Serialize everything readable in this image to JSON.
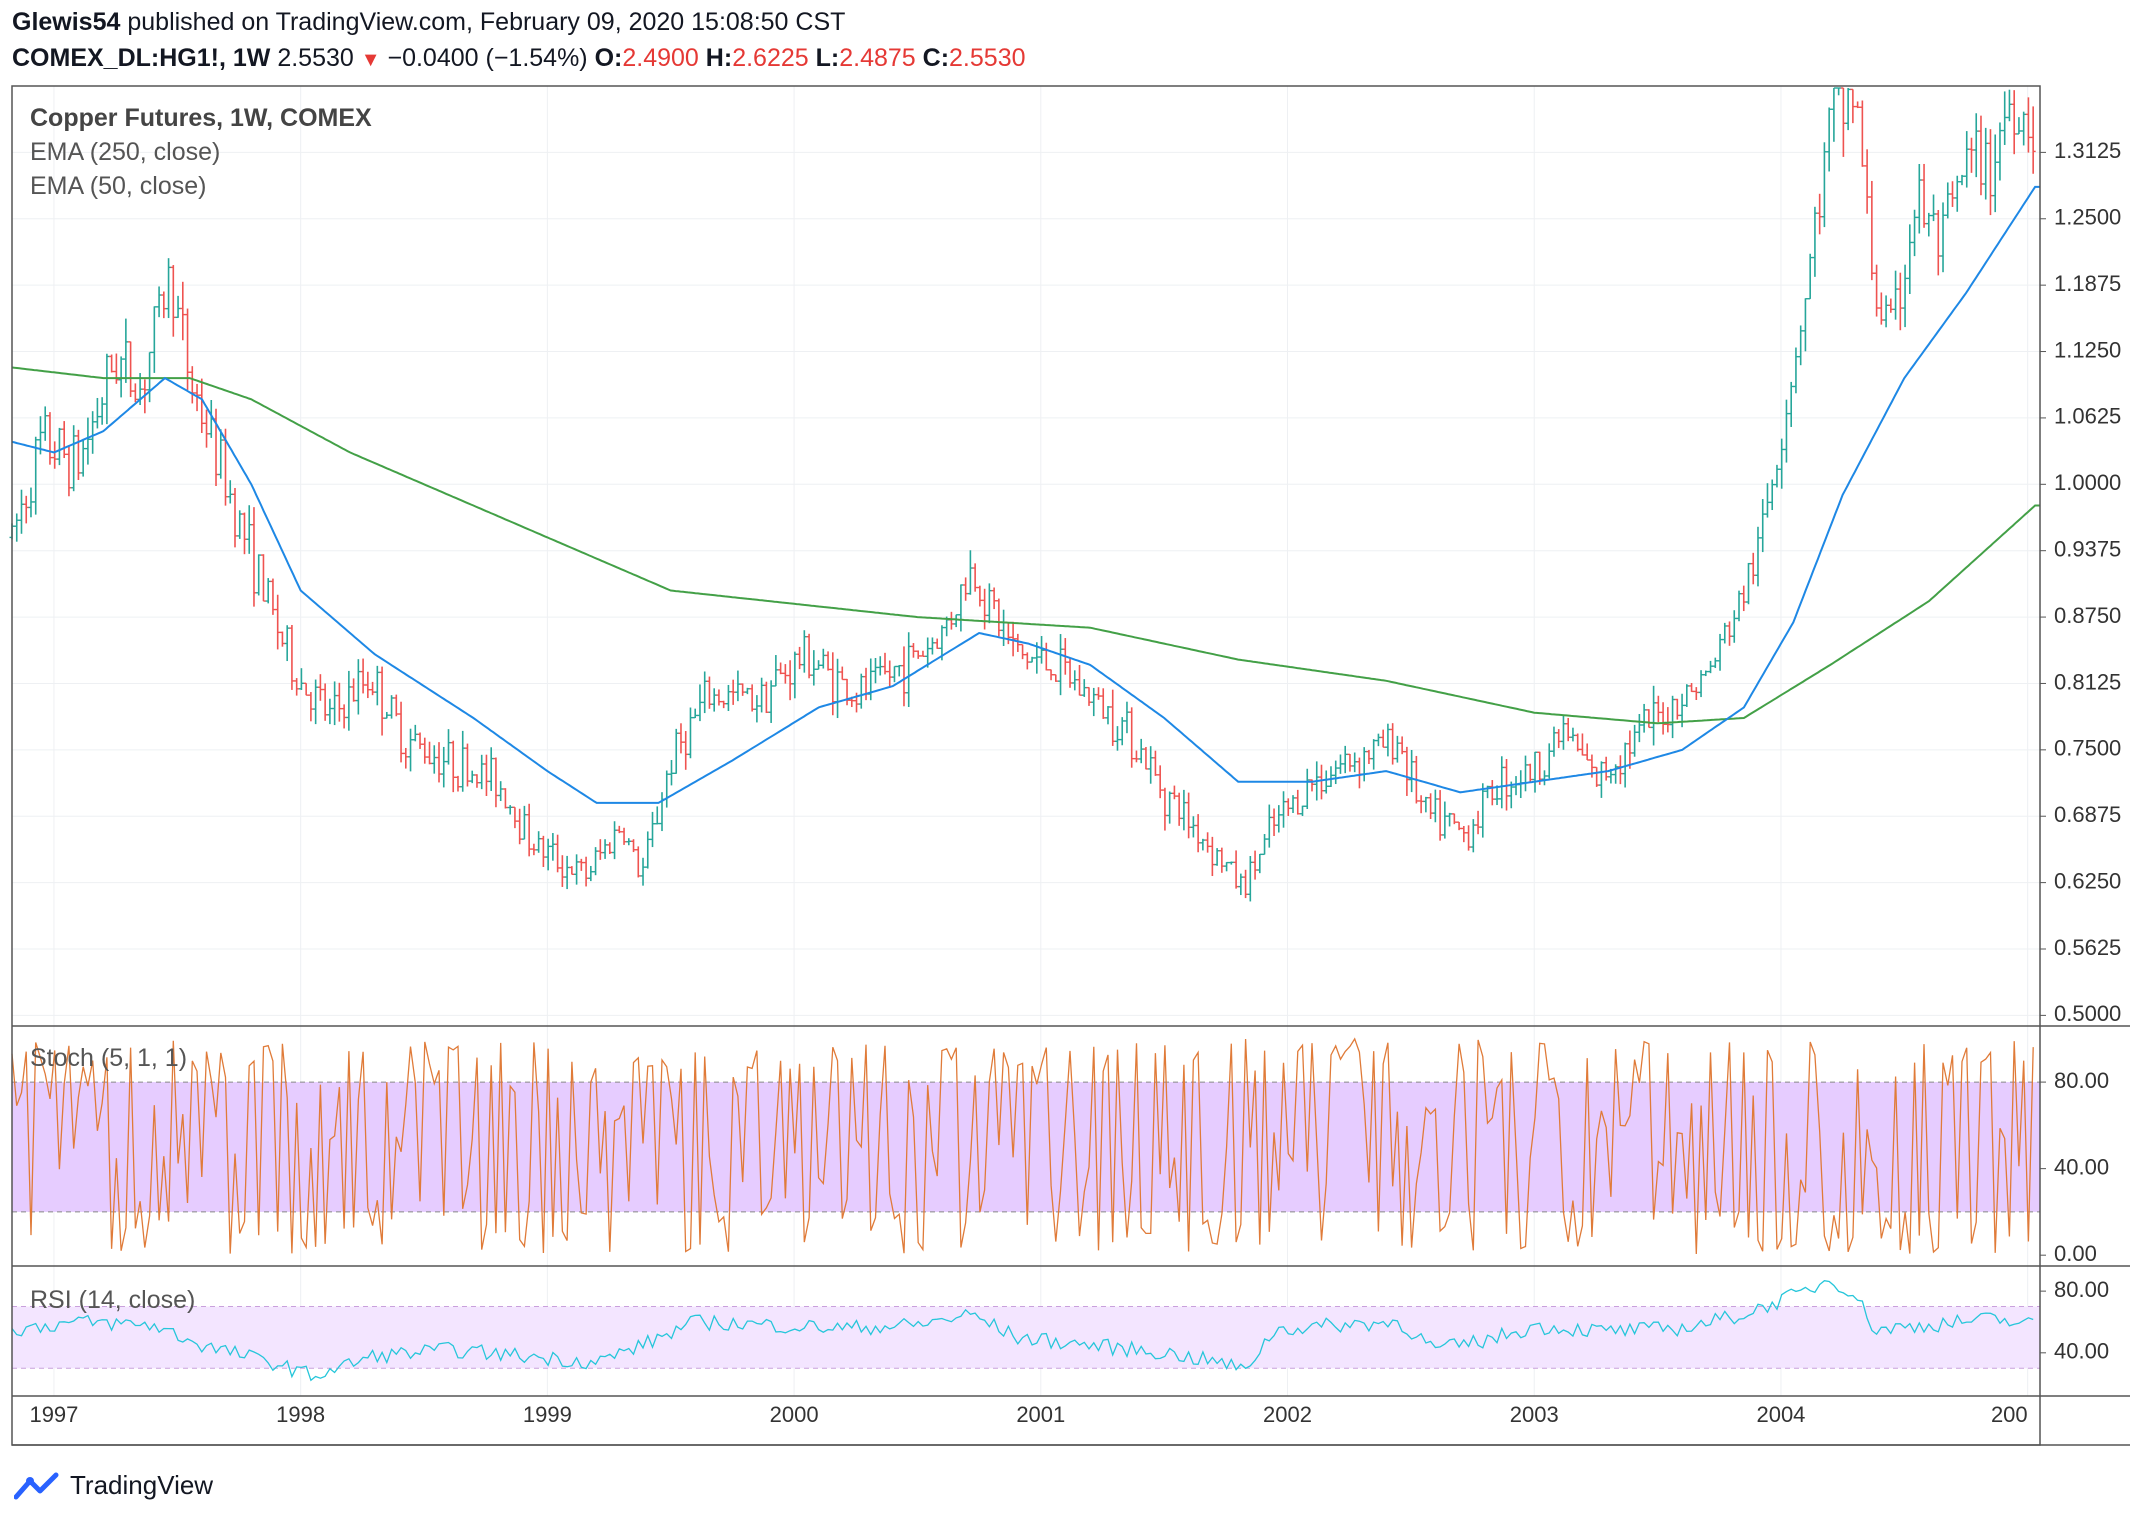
{
  "header": {
    "author": "Glewis54",
    "published_text": "published on TradingView.com, February 09, 2020 15:08:50 CST",
    "symbol": "COMEX_DL:HG1!, 1W",
    "last": "2.5530",
    "change": "−0.0400 (−1.54%)",
    "open_label": "O:",
    "open": "2.4900",
    "high_label": "H:",
    "high": "2.6225",
    "low_label": "L:",
    "low": "2.4875",
    "close_label": "C:",
    "close": "2.5530"
  },
  "legend": {
    "title": "Copper Futures, 1W, COMEX",
    "ema250": "EMA (250, close)",
    "ema50": "EMA (50, close)",
    "stoch": "Stoch (5, 1, 1)",
    "rsi": "RSI (14, close)"
  },
  "footer": {
    "brand": "TradingView"
  },
  "colors": {
    "up": "#26a69a",
    "down": "#ef5350",
    "ema50": "#1e88e5",
    "ema250": "#43a047",
    "stoch": "#e07b39",
    "stoch_band": "#e6ccff",
    "rsi": "#26c6da",
    "rsi_band": "#f3e5ff",
    "grid": "#eef0f3",
    "border": "#555555"
  },
  "chart_data": [
    {
      "type": "candlestick",
      "title": "Copper Futures, 1W, COMEX",
      "x_ticks": [
        "1997",
        "1998",
        "1999",
        "2000",
        "2001",
        "2002",
        "2003",
        "2004",
        "200"
      ],
      "y_ticks": [
        "0.5000",
        "0.5625",
        "0.6250",
        "0.6875",
        "0.7500",
        "0.8125",
        "0.8750",
        "0.9375",
        "1.0000",
        "1.0625",
        "1.1250",
        "1.1875",
        "1.2500",
        "1.3125"
      ],
      "ylim": [
        0.49,
        1.375
      ],
      "xlim": [
        1996.83,
        2005.05
      ],
      "price_anchors": [
        [
          1996.83,
          0.95
        ],
        [
          1996.95,
          1.04
        ],
        [
          1997.1,
          1.02
        ],
        [
          1997.25,
          1.12
        ],
        [
          1997.35,
          1.09
        ],
        [
          1997.47,
          1.2
        ],
        [
          1997.55,
          1.1
        ],
        [
          1997.7,
          1.0
        ],
        [
          1997.85,
          0.9
        ],
        [
          1997.98,
          0.82
        ],
        [
          1998.12,
          0.78
        ],
        [
          1998.28,
          0.82
        ],
        [
          1998.42,
          0.76
        ],
        [
          1998.6,
          0.74
        ],
        [
          1998.8,
          0.72
        ],
        [
          1998.95,
          0.66
        ],
        [
          1999.15,
          0.63
        ],
        [
          1999.3,
          0.68
        ],
        [
          1999.38,
          0.63
        ],
        [
          1999.5,
          0.74
        ],
        [
          1999.65,
          0.8
        ],
        [
          1999.85,
          0.8
        ],
        [
          2000.05,
          0.84
        ],
        [
          2000.25,
          0.8
        ],
        [
          2000.45,
          0.83
        ],
        [
          2000.6,
          0.86
        ],
        [
          2000.72,
          0.92
        ],
        [
          2000.9,
          0.84
        ],
        [
          2001.05,
          0.83
        ],
        [
          2001.2,
          0.8
        ],
        [
          2001.35,
          0.77
        ],
        [
          2001.5,
          0.71
        ],
        [
          2001.65,
          0.67
        ],
        [
          2001.82,
          0.62
        ],
        [
          2001.95,
          0.68
        ],
        [
          2002.1,
          0.72
        ],
        [
          2002.25,
          0.74
        ],
        [
          2002.45,
          0.76
        ],
        [
          2002.55,
          0.69
        ],
        [
          2002.72,
          0.67
        ],
        [
          2002.85,
          0.72
        ],
        [
          2003.0,
          0.73
        ],
        [
          2003.12,
          0.77
        ],
        [
          2003.25,
          0.72
        ],
        [
          2003.4,
          0.76
        ],
        [
          2003.55,
          0.79
        ],
        [
          2003.7,
          0.82
        ],
        [
          2003.8,
          0.87
        ],
        [
          2003.9,
          0.93
        ],
        [
          2004.0,
          1.05
        ],
        [
          2004.1,
          1.18
        ],
        [
          2004.2,
          1.34
        ],
        [
          2004.3,
          1.37
        ],
        [
          2004.38,
          1.18
        ],
        [
          2004.45,
          1.14
        ],
        [
          2004.55,
          1.27
        ],
        [
          2004.65,
          1.22
        ],
        [
          2004.75,
          1.3
        ],
        [
          2004.85,
          1.3
        ],
        [
          2004.92,
          1.36
        ],
        [
          2005.03,
          1.34
        ]
      ],
      "ema250_anchors": [
        [
          1996.83,
          1.11
        ],
        [
          1997.2,
          1.1
        ],
        [
          1997.55,
          1.1
        ],
        [
          1997.8,
          1.08
        ],
        [
          1998.2,
          1.03
        ],
        [
          1998.8,
          0.97
        ],
        [
          1999.5,
          0.9
        ],
        [
          2000.5,
          0.875
        ],
        [
          2001.2,
          0.865
        ],
        [
          2001.8,
          0.835
        ],
        [
          2002.4,
          0.815
        ],
        [
          2003.0,
          0.785
        ],
        [
          2003.5,
          0.775
        ],
        [
          2003.85,
          0.78
        ],
        [
          2004.2,
          0.83
        ],
        [
          2004.6,
          0.89
        ],
        [
          2005.03,
          0.98
        ]
      ],
      "ema50_anchors": [
        [
          1996.83,
          1.04
        ],
        [
          1997.0,
          1.03
        ],
        [
          1997.2,
          1.05
        ],
        [
          1997.45,
          1.1
        ],
        [
          1997.6,
          1.08
        ],
        [
          1997.8,
          1.0
        ],
        [
          1998.0,
          0.9
        ],
        [
          1998.3,
          0.84
        ],
        [
          1998.7,
          0.78
        ],
        [
          1999.0,
          0.73
        ],
        [
          1999.2,
          0.7
        ],
        [
          1999.45,
          0.7
        ],
        [
          1999.75,
          0.74
        ],
        [
          2000.1,
          0.79
        ],
        [
          2000.4,
          0.81
        ],
        [
          2000.75,
          0.86
        ],
        [
          2000.95,
          0.85
        ],
        [
          2001.2,
          0.83
        ],
        [
          2001.5,
          0.78
        ],
        [
          2001.8,
          0.72
        ],
        [
          2002.1,
          0.72
        ],
        [
          2002.4,
          0.73
        ],
        [
          2002.7,
          0.71
        ],
        [
          2003.0,
          0.72
        ],
        [
          2003.3,
          0.73
        ],
        [
          2003.6,
          0.75
        ],
        [
          2003.85,
          0.79
        ],
        [
          2004.05,
          0.87
        ],
        [
          2004.25,
          0.99
        ],
        [
          2004.5,
          1.1
        ],
        [
          2004.75,
          1.18
        ],
        [
          2005.03,
          1.28
        ]
      ]
    },
    {
      "type": "line",
      "title": "Stoch (5, 1, 1)",
      "y_ticks": [
        "80.00",
        "40.00",
        "0.00"
      ],
      "ylim": [
        -5,
        105
      ],
      "bands": [
        20,
        80
      ],
      "description_series": "oscillating 0-100"
    },
    {
      "type": "line",
      "title": "RSI (14, close)",
      "y_ticks": [
        "80.00",
        "40.00"
      ],
      "ylim": [
        12,
        95
      ],
      "bands": [
        30,
        70
      ],
      "rsi_anchors": [
        [
          1996.83,
          55
        ],
        [
          1997.1,
          60
        ],
        [
          1997.4,
          58
        ],
        [
          1997.6,
          45
        ],
        [
          1997.9,
          33
        ],
        [
          1998.05,
          25
        ],
        [
          1998.15,
          30
        ],
        [
          1998.3,
          38
        ],
        [
          1998.6,
          42
        ],
        [
          1998.9,
          38
        ],
        [
          1999.2,
          34
        ],
        [
          1999.4,
          46
        ],
        [
          1999.6,
          60
        ],
        [
          1999.9,
          58
        ],
        [
          2000.2,
          56
        ],
        [
          2000.5,
          58
        ],
        [
          2000.72,
          65
        ],
        [
          2000.9,
          50
        ],
        [
          2001.2,
          45
        ],
        [
          2001.5,
          40
        ],
        [
          2001.75,
          33
        ],
        [
          2001.82,
          28
        ],
        [
          2001.95,
          55
        ],
        [
          2002.2,
          58
        ],
        [
          2002.45,
          60
        ],
        [
          2002.6,
          42
        ],
        [
          2002.8,
          48
        ],
        [
          2003.0,
          57
        ],
        [
          2003.3,
          54
        ],
        [
          2003.6,
          56
        ],
        [
          2003.85,
          65
        ],
        [
          2004.1,
          80
        ],
        [
          2004.2,
          88
        ],
        [
          2004.3,
          78
        ],
        [
          2004.38,
          55
        ],
        [
          2004.6,
          58
        ],
        [
          2004.85,
          62
        ],
        [
          2005.03,
          58
        ]
      ]
    }
  ]
}
